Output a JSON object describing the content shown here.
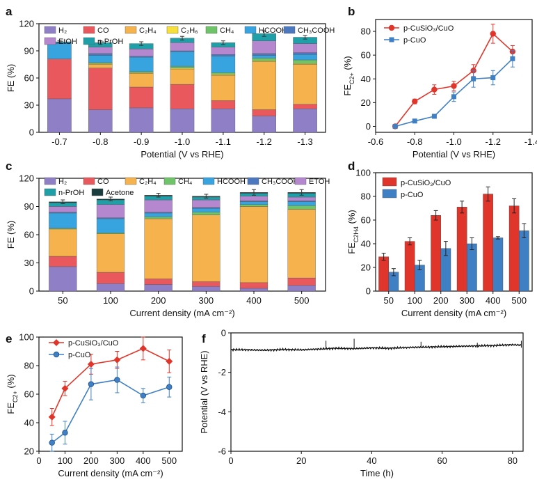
{
  "colors": {
    "H2": "#8f7fc7",
    "CO": "#e8585d",
    "C2H4": "#f5b24d",
    "C2H6": "#f7e03c",
    "CH4": "#6fc46a",
    "HCOOH": "#37a4e0",
    "CH3COOH": "#4b78bf",
    "EtOH": "#b487cf",
    "nPrOH": "#1fa0a8",
    "Acetone": "#1a3d3d",
    "catalyst": "#e0352b",
    "reference": "#3f7fc4",
    "trace": "#111111"
  },
  "chart_data": [
    {
      "panel": "a",
      "type": "bar",
      "stacked": true,
      "xlabel": "Potential (V vs RHE)",
      "ylabel": "FE (%)",
      "ylim": [
        0,
        120
      ],
      "yticks": [
        0,
        30,
        60,
        90,
        120
      ],
      "categories": [
        "-0.7",
        "-0.8",
        "-0.9",
        "-1.0",
        "-1.1",
        "-1.2",
        "-1.3"
      ],
      "legend": [
        {
          "key": "H2",
          "text": "H₂"
        },
        {
          "key": "CO",
          "text": "CO"
        },
        {
          "key": "C2H4",
          "text": "C₂H₄"
        },
        {
          "key": "C2H6",
          "text": "C₂H₆"
        },
        {
          "key": "CH4",
          "text": "CH₄"
        },
        {
          "key": "HCOOH",
          "text": "HCOOH"
        },
        {
          "key": "CH3COOH",
          "text": "CH₃COOH"
        },
        {
          "key": "EtOH",
          "text": "EtOH"
        },
        {
          "key": "nPrOH",
          "text": "n-PrOH"
        }
      ],
      "series": [
        {
          "key": "H2",
          "values": [
            37,
            25,
            27,
            26,
            26,
            18,
            26
          ]
        },
        {
          "key": "CO",
          "values": [
            44,
            46,
            23,
            27,
            9,
            7,
            5
          ]
        },
        {
          "key": "C2H4",
          "values": [
            0,
            4,
            15,
            17,
            28,
            53,
            44
          ]
        },
        {
          "key": "C2H6",
          "values": [
            0,
            1,
            1,
            1,
            1,
            1,
            1
          ]
        },
        {
          "key": "CH4",
          "values": [
            0,
            1,
            1,
            2,
            2,
            3,
            4
          ]
        },
        {
          "key": "HCOOH",
          "values": [
            17,
            8,
            16,
            16,
            18,
            3,
            6
          ]
        },
        {
          "key": "CH3COOH",
          "values": [
            1,
            2,
            1,
            1,
            2,
            2,
            2
          ]
        },
        {
          "key": "EtOH",
          "values": [
            0,
            7,
            8,
            9,
            8,
            14,
            10
          ]
        },
        {
          "key": "nPrOH",
          "values": [
            1,
            5,
            6,
            5,
            5,
            8,
            7
          ]
        }
      ],
      "errors": [
        1,
        2,
        2,
        2,
        2,
        3,
        2
      ]
    },
    {
      "panel": "b",
      "type": "line",
      "xlabel": "Potential (V vs RHE)",
      "ylabel": "FE",
      "ylabel_sub": "C2+",
      "ylabel_unit": " (%)",
      "xlim": [
        -0.6,
        -1.4
      ],
      "xticks": [
        "-0.6",
        "-0.8",
        "-1.0",
        "-1.2",
        "-1.4"
      ],
      "ylim": [
        -5,
        90
      ],
      "yticks": [
        0,
        20,
        40,
        60,
        80
      ],
      "x": [
        -0.7,
        -0.8,
        -0.9,
        -1.0,
        -1.1,
        -1.2,
        -1.3
      ],
      "series": [
        {
          "name": "p-CuSiO₃/CuO",
          "colorKey": "catalyst",
          "marker": "circle",
          "values": [
            0,
            21,
            31,
            34,
            47,
            78,
            63
          ],
          "errors": [
            0,
            2,
            4,
            4,
            5,
            8,
            5
          ]
        },
        {
          "name": "p-CuO",
          "colorKey": "reference",
          "marker": "square",
          "values": [
            0,
            4.5,
            8.5,
            25,
            40,
            41,
            57
          ],
          "errors": [
            0,
            0.5,
            1,
            4,
            7,
            6,
            7
          ]
        }
      ]
    },
    {
      "panel": "c",
      "type": "bar",
      "stacked": true,
      "xlabel": "Current density (mA cm⁻²)",
      "ylabel": "FE (%)",
      "ylim": [
        0,
        120
      ],
      "yticks": [
        0,
        30,
        60,
        90,
        120
      ],
      "categories": [
        "50",
        "100",
        "200",
        "300",
        "400",
        "500"
      ],
      "legend": [
        {
          "key": "H2",
          "text": "H₂"
        },
        {
          "key": "CO",
          "text": "CO"
        },
        {
          "key": "C2H4",
          "text": "C₂H₄"
        },
        {
          "key": "CH4",
          "text": "CH₄"
        },
        {
          "key": "HCOOH",
          "text": "HCOOH"
        },
        {
          "key": "CH3COOH",
          "text": "CH₃COOH"
        },
        {
          "key": "EtOH",
          "text": "ETOH"
        },
        {
          "key": "nPrOH",
          "text": "n-PrOH"
        },
        {
          "key": "Acetone",
          "text": "Acetone"
        }
      ],
      "series": [
        {
          "key": "H2",
          "values": [
            26,
            8,
            7,
            5,
            3,
            6
          ]
        },
        {
          "key": "CO",
          "values": [
            11,
            12,
            6,
            5,
            6,
            8
          ]
        },
        {
          "key": "C2H4",
          "values": [
            29,
            41,
            64,
            71,
            81,
            73
          ]
        },
        {
          "key": "CH4",
          "values": [
            1,
            1,
            2,
            3,
            2,
            4
          ]
        },
        {
          "key": "HCOOH",
          "values": [
            16,
            15,
            4,
            4,
            3,
            4
          ]
        },
        {
          "key": "CH3COOH",
          "values": [
            1,
            1,
            1,
            1,
            1,
            1
          ]
        },
        {
          "key": "EtOH",
          "values": [
            6,
            14,
            13,
            8,
            5,
            4
          ]
        },
        {
          "key": "nPrOH",
          "values": [
            4,
            5,
            4,
            3,
            3,
            4
          ]
        },
        {
          "key": "Acetone",
          "values": [
            1,
            1,
            1,
            1,
            1,
            1
          ]
        }
      ],
      "errors": [
        2,
        2,
        2,
        2,
        3,
        3
      ]
    },
    {
      "panel": "d",
      "type": "bar",
      "grouped": true,
      "xlabel": "Current density (mA cm⁻²)",
      "ylabel": "FE",
      "ylabel_sub": "C2H4",
      "ylabel_unit": " (%)",
      "ylim": [
        0,
        100
      ],
      "yticks": [
        0,
        20,
        40,
        60,
        80,
        100
      ],
      "categories": [
        "50",
        "100",
        "200",
        "300",
        "400",
        "500"
      ],
      "series": [
        {
          "name": "p-CuSiO₃/CuO",
          "colorKey": "catalyst",
          "values": [
            29,
            42,
            64,
            71,
            82,
            72
          ],
          "errors": [
            3,
            3,
            4,
            5,
            6,
            6
          ]
        },
        {
          "name": "p-CuO",
          "colorKey": "reference",
          "values": [
            16,
            22,
            36,
            40,
            45,
            51
          ],
          "errors": [
            3,
            4,
            6,
            5,
            1,
            6
          ]
        }
      ]
    },
    {
      "panel": "e",
      "type": "line",
      "xlabel": "Current density (mA cm⁻²)",
      "ylabel": "FE",
      "ylabel_sub": "C2+",
      "ylabel_unit": " (%)",
      "xlim": [
        0,
        550
      ],
      "xticks": [
        "0",
        "100",
        "200",
        "300",
        "400",
        "500"
      ],
      "ylim": [
        20,
        100
      ],
      "yticks": [
        20,
        40,
        60,
        80,
        100
      ],
      "x": [
        50,
        100,
        200,
        300,
        400,
        500
      ],
      "series": [
        {
          "name": "p-CuSiO₃/CuO",
          "colorKey": "catalyst",
          "marker": "diamond",
          "values": [
            44,
            64,
            81,
            84,
            92,
            83
          ],
          "errors": [
            6,
            5,
            7,
            6,
            8,
            8
          ]
        },
        {
          "name": "p-CuO",
          "colorKey": "reference",
          "marker": "circle",
          "values": [
            26,
            33,
            67,
            70,
            59,
            65
          ],
          "errors": [
            6,
            8,
            11,
            9,
            5,
            7
          ]
        }
      ]
    },
    {
      "panel": "f",
      "type": "line",
      "xlabel": "Time (h)",
      "ylabel": "Potential (V vs RHE)",
      "xlim": [
        0,
        83
      ],
      "xticks": [
        "0",
        "20",
        "40",
        "60",
        "80"
      ],
      "ylim": [
        -6,
        0
      ],
      "yticks": [
        "0",
        "-2",
        "-4",
        "-6"
      ],
      "time_points": [
        0,
        5,
        10,
        15,
        20,
        25,
        30,
        35,
        40,
        45,
        50,
        55,
        60,
        65,
        70,
        75,
        80,
        82.5
      ],
      "potential_points": [
        -0.85,
        -0.86,
        -0.88,
        -0.84,
        -0.86,
        -0.82,
        -0.78,
        -0.8,
        -0.76,
        -0.78,
        -0.74,
        -0.72,
        -0.7,
        -0.68,
        -0.66,
        -0.64,
        -0.6,
        -0.62
      ]
    }
  ]
}
